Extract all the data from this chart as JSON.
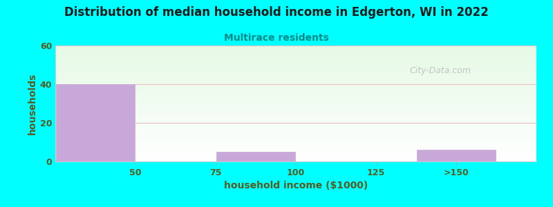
{
  "title": "Distribution of median household income in Edgerton, WI in 2022",
  "subtitle": "Multirace residents",
  "xlabel": "household income ($1000)",
  "ylabel": "households",
  "background_color": "#00FFFF",
  "bar_color": "#c8a8d8",
  "title_color": "#1a1a1a",
  "subtitle_color": "#008888",
  "axis_label_color": "#5a5a20",
  "tick_label_color": "#5a5a20",
  "watermark": "City-Data.com",
  "bar_centers": [
    37.5,
    62.5,
    87.5,
    112.5,
    150
  ],
  "bar_widths": [
    25,
    25,
    25,
    25,
    25
  ],
  "bar_heights": [
    40,
    0,
    5,
    0,
    6
  ],
  "xtick_positions": [
    50,
    75,
    100,
    125,
    150
  ],
  "xtick_labels": [
    "50",
    "75",
    "100",
    "125",
    ">150"
  ],
  "ytick_positions": [
    0,
    20,
    40,
    60
  ],
  "ytick_labels": [
    "0",
    "20",
    "40",
    "60"
  ],
  "ylim": [
    0,
    60
  ],
  "xlim": [
    25,
    175
  ],
  "grid_color": "#f0c0c8"
}
